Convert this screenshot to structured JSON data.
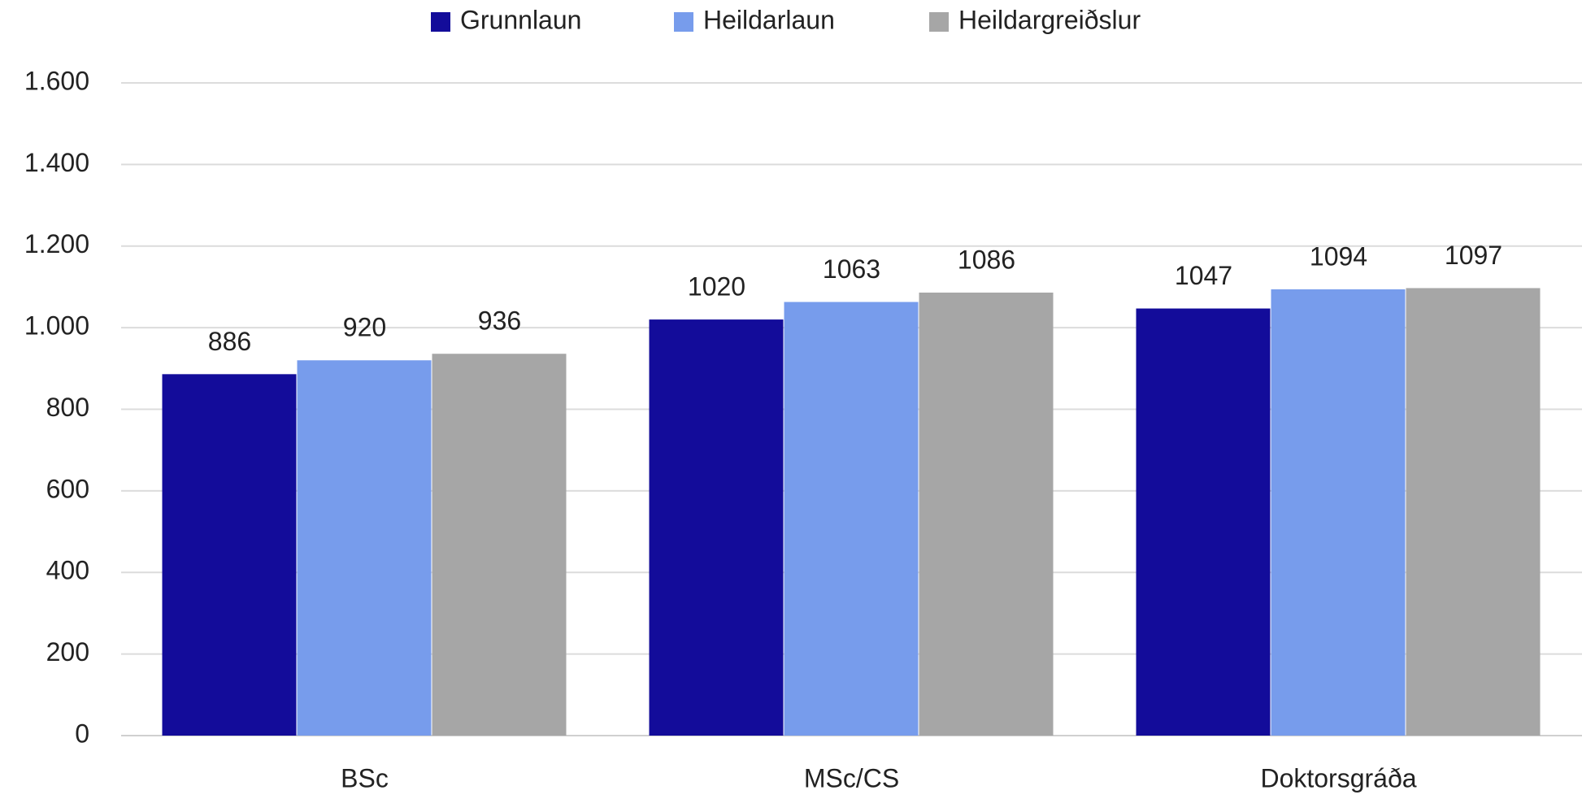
{
  "chart_data": {
    "type": "bar",
    "categories": [
      "BSc",
      "MSc/CS",
      "Doktorsgráða"
    ],
    "series": [
      {
        "name": "Grunnlaun",
        "color": "#130c9a",
        "values": [
          886,
          1020,
          1047
        ]
      },
      {
        "name": "Heildarlaun",
        "color": "#779cec",
        "values": [
          920,
          1063,
          1094
        ]
      },
      {
        "name": "Heildargreiðslur",
        "color": "#a6a6a6",
        "values": [
          936,
          1086,
          1097
        ]
      }
    ],
    "ylim": [
      0,
      1600
    ],
    "yticks": [
      0,
      200,
      400,
      600,
      800,
      {
        "value": 1000,
        "label": "1.000"
      },
      {
        "value": 1200,
        "label": "1.200"
      },
      {
        "value": 1400,
        "label": "1.400"
      },
      {
        "value": 1600,
        "label": "1.600"
      }
    ],
    "grid": true,
    "legend": "top"
  }
}
